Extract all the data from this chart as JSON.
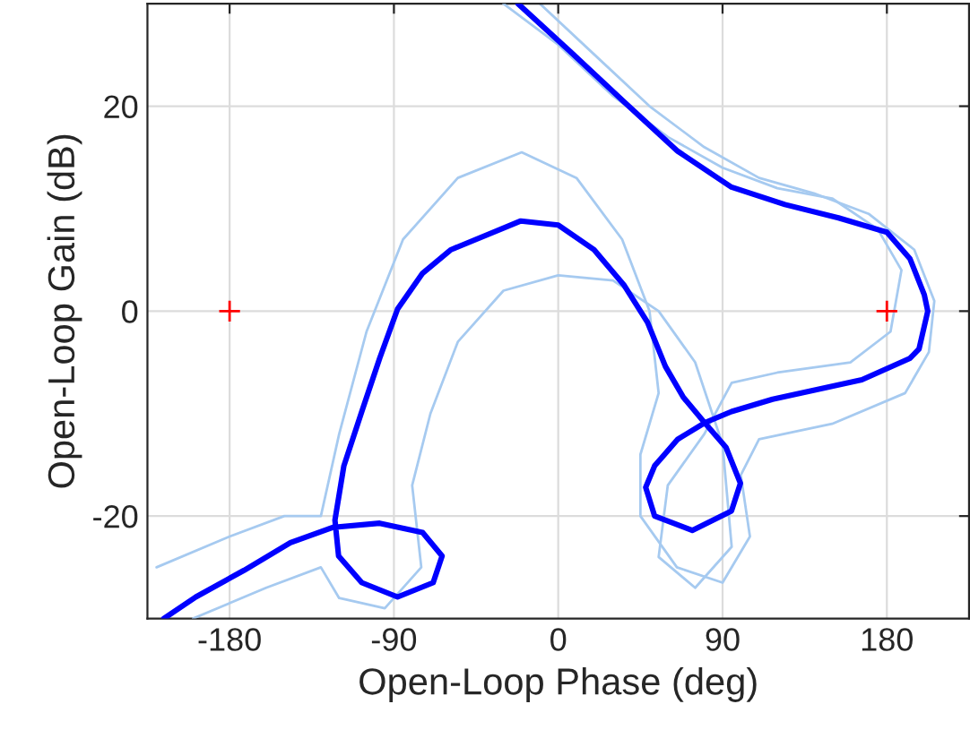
{
  "chart_data": {
    "type": "line",
    "xlabel": "Open-Loop Phase (deg)",
    "ylabel": "Open-Loop Gain (dB)",
    "xlim": [
      -225,
      225
    ],
    "ylim": [
      -30,
      30
    ],
    "xticks": [
      -180,
      -90,
      0,
      90,
      180
    ],
    "yticks": [
      -20,
      0,
      20
    ],
    "grid": true,
    "series": [
      {
        "color": "#a6caf0",
        "x": [
          -10,
          20,
          50,
          80,
          110,
          140,
          170,
          195,
          206,
          203,
          190,
          150,
          110,
          100,
          105,
          90,
          65,
          45,
          45,
          55,
          50,
          35,
          10,
          -20,
          -55,
          -85,
          -105,
          -120,
          -130,
          -150,
          -180,
          -220
        ],
        "values": [
          30,
          25,
          20,
          16,
          13,
          11.5,
          9.5,
          6,
          1,
          -4,
          -8,
          -11,
          -12.5,
          -16,
          -22,
          -26.5,
          -25,
          -20,
          -14,
          -8,
          0,
          7,
          13,
          15.5,
          13,
          7,
          -2,
          -12,
          -20,
          -20,
          -22,
          -25
        ]
      },
      {
        "color": "#a6caf0",
        "x": [
          -30,
          0,
          30,
          60,
          90,
          120,
          150,
          175,
          188,
          182,
          160,
          120,
          95,
          80,
          60,
          55,
          75,
          95,
          90,
          75,
          55,
          30,
          0,
          -30,
          -55,
          -70,
          -80,
          -75,
          -95,
          -120,
          -130,
          -160,
          -200
        ],
        "values": [
          30,
          26,
          21,
          17,
          14,
          12,
          11,
          8,
          4,
          -2,
          -5,
          -6,
          -7,
          -12,
          -17,
          -24,
          -27,
          -23,
          -13,
          -5,
          0,
          3,
          3.5,
          2,
          -3,
          -10,
          -17,
          -25,
          -29,
          -28,
          -25,
          -27,
          -30
        ]
      },
      {
        "color": "#0000ff",
        "x": [
          -22,
          6.8,
          36.2,
          65.5,
          94.9,
          124.2,
          153.5,
          180,
          192.7,
          200.5,
          202.4,
          197.6,
          192.7,
          166.3,
          117.4,
          94.9,
          80.2,
          65.5,
          52.8,
          47.9,
          52.8,
          73.4,
          94.9,
          99.8,
          91.9,
          80.2,
          68.5,
          58.7,
          48.9,
          36.2,
          19.6,
          0,
          -20.5,
          -58.7,
          -74.3,
          -88,
          -97.8,
          -107.6,
          -117.4,
          -122.3,
          -120.3,
          -107.6,
          -88,
          -68.5,
          -63.6,
          -74.3,
          -97.8,
          -123.2,
          -146.7,
          -172.1,
          -198.5,
          -216
        ],
        "values": [
          30,
          25.3,
          20.4,
          15.6,
          12.1,
          10.4,
          9.1,
          7.7,
          5.1,
          1.6,
          0,
          -3.7,
          -4.6,
          -6.7,
          -8.6,
          -9.8,
          -10.9,
          -12.5,
          -15.1,
          -17.2,
          -20,
          -21.4,
          -19.5,
          -16.8,
          -13.3,
          -10.9,
          -8.4,
          -5.4,
          -1.1,
          2.5,
          6,
          8.4,
          8.8,
          6,
          3.7,
          0.2,
          -4.6,
          -9.8,
          -15.1,
          -20.4,
          -23.9,
          -26.5,
          -27.9,
          -26.5,
          -23.9,
          -21.6,
          -20.7,
          -21.1,
          -22.6,
          -25.3,
          -27.9,
          -30
        ]
      },
      {
        "type": "scatter",
        "marker": "cross",
        "color": "#ff0000",
        "x": [
          -180,
          180
        ],
        "values": [
          0,
          0
        ]
      }
    ]
  }
}
